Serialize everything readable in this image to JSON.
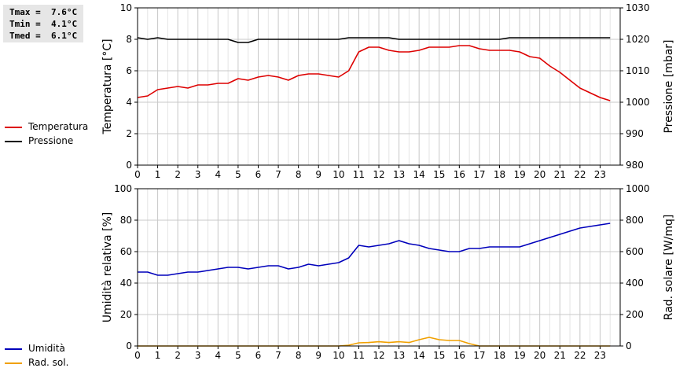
{
  "stats": {
    "tmax": "Tmax =  7.6°C",
    "tmin": "Tmin =  4.1°C",
    "tmed": "Tmed =  6.1°C"
  },
  "legend_top": [
    {
      "label": "Temperatura",
      "color": "#dd0000"
    },
    {
      "label": "Pressione",
      "color": "#000000"
    }
  ],
  "legend_bottom": [
    {
      "label": "Umidità",
      "color": "#0000bb"
    },
    {
      "label": "Rad. sol.",
      "color": "#f0a000"
    }
  ],
  "chart_data": [
    {
      "type": "line",
      "xlim": [
        0,
        24
      ],
      "xticks": [
        0,
        1,
        2,
        3,
        4,
        5,
        6,
        7,
        8,
        9,
        10,
        11,
        12,
        13,
        14,
        15,
        16,
        17,
        18,
        19,
        20,
        21,
        22,
        23
      ],
      "grid": true,
      "ylabel": "Temperatura [°C]",
      "ylim": [
        0,
        10
      ],
      "yticks": [
        0,
        2,
        4,
        6,
        8,
        10
      ],
      "y2label": "Pressione [mbar]",
      "y2lim": [
        980,
        1030
      ],
      "y2ticks": [
        980,
        990,
        1000,
        1010,
        1020,
        1030
      ],
      "series": [
        {
          "name": "Temperatura",
          "color": "#dd0000",
          "axis": "left",
          "x": [
            0,
            0.5,
            1,
            1.5,
            2,
            2.5,
            3,
            3.5,
            4,
            4.5,
            5,
            5.5,
            6,
            6.5,
            7,
            7.5,
            8,
            8.5,
            9,
            9.5,
            10,
            10.5,
            11,
            11.5,
            12,
            12.5,
            13,
            13.5,
            14,
            14.5,
            15,
            15.5,
            16,
            16.5,
            17,
            17.5,
            18,
            18.5,
            19,
            19.5,
            20,
            20.5,
            21,
            21.5,
            22,
            22.5,
            23,
            23.5
          ],
          "y": [
            4.3,
            4.4,
            4.8,
            4.9,
            5.0,
            4.9,
            5.1,
            5.1,
            5.2,
            5.2,
            5.5,
            5.4,
            5.6,
            5.7,
            5.6,
            5.4,
            5.7,
            5.8,
            5.8,
            5.7,
            5.6,
            6.0,
            7.2,
            7.5,
            7.5,
            7.3,
            7.2,
            7.2,
            7.3,
            7.5,
            7.5,
            7.5,
            7.6,
            7.6,
            7.4,
            7.3,
            7.3,
            7.3,
            7.2,
            6.9,
            6.8,
            6.3,
            5.9,
            5.4,
            4.9,
            4.6,
            4.3,
            4.1
          ]
        },
        {
          "name": "Pressione",
          "color": "#000000",
          "axis": "right",
          "x": [
            0,
            0.5,
            1,
            1.5,
            2,
            2.5,
            3,
            3.5,
            4,
            4.5,
            5,
            5.5,
            6,
            6.5,
            7,
            7.5,
            8,
            8.5,
            9,
            9.5,
            10,
            10.5,
            11,
            11.5,
            12,
            12.5,
            13,
            13.5,
            14,
            14.5,
            15,
            15.5,
            16,
            16.5,
            17,
            17.5,
            18,
            18.5,
            19,
            19.5,
            20,
            20.5,
            21,
            21.5,
            22,
            22.5,
            23,
            23.5
          ],
          "y": [
            1020.5,
            1020,
            1020.5,
            1020,
            1020,
            1020,
            1020,
            1020,
            1020,
            1020,
            1019,
            1019,
            1020,
            1020,
            1020,
            1020,
            1020,
            1020,
            1020,
            1020,
            1020,
            1020.5,
            1020.5,
            1020.5,
            1020.5,
            1020.5,
            1020,
            1020,
            1020,
            1020,
            1020,
            1020,
            1020,
            1020,
            1020,
            1020,
            1020,
            1020.5,
            1020.5,
            1020.5,
            1020.5,
            1020.5,
            1020.5,
            1020.5,
            1020.5,
            1020.5,
            1020.5,
            1020.5
          ]
        }
      ]
    },
    {
      "type": "line",
      "xlim": [
        0,
        24
      ],
      "xticks": [
        0,
        1,
        2,
        3,
        4,
        5,
        6,
        7,
        8,
        9,
        10,
        11,
        12,
        13,
        14,
        15,
        16,
        17,
        18,
        19,
        20,
        21,
        22,
        23
      ],
      "grid": true,
      "ylabel": "Umidità relativa [%]",
      "ylim": [
        0,
        100
      ],
      "yticks": [
        0,
        20,
        40,
        60,
        80,
        100
      ],
      "y2label": "Rad. solare [W/mq]",
      "y2lim": [
        0,
        1000
      ],
      "y2ticks": [
        0,
        200,
        400,
        600,
        800,
        1000
      ],
      "series": [
        {
          "name": "Umidità",
          "color": "#0000bb",
          "axis": "left",
          "x": [
            0,
            0.5,
            1,
            1.5,
            2,
            2.5,
            3,
            3.5,
            4,
            4.5,
            5,
            5.5,
            6,
            6.5,
            7,
            7.5,
            8,
            8.5,
            9,
            9.5,
            10,
            10.5,
            11,
            11.5,
            12,
            12.5,
            13,
            13.5,
            14,
            14.5,
            15,
            15.5,
            16,
            16.5,
            17,
            17.5,
            18,
            18.5,
            19,
            19.5,
            20,
            20.5,
            21,
            21.5,
            22,
            22.5,
            23,
            23.5
          ],
          "y": [
            47,
            47,
            45,
            45,
            46,
            47,
            47,
            48,
            49,
            50,
            50,
            49,
            50,
            51,
            51,
            49,
            50,
            52,
            51,
            52,
            53,
            56,
            64,
            63,
            64,
            65,
            67,
            65,
            64,
            62,
            61,
            60,
            60,
            62,
            62,
            63,
            63,
            63,
            63,
            65,
            67,
            69,
            71,
            73,
            75,
            76,
            77,
            78
          ]
        },
        {
          "name": "Rad. sol.",
          "color": "#f0a000",
          "axis": "right",
          "x": [
            0,
            1,
            2,
            3,
            4,
            5,
            6,
            7,
            8,
            9,
            10,
            10.5,
            11,
            11.5,
            12,
            12.5,
            13,
            13.5,
            14,
            14.5,
            15,
            15.5,
            16,
            16.5,
            17,
            18,
            19,
            20,
            21,
            22,
            23,
            23.5
          ],
          "y": [
            0,
            0,
            0,
            0,
            0,
            0,
            0,
            0,
            0,
            0,
            0,
            5,
            20,
            22,
            27,
            22,
            27,
            22,
            40,
            55,
            40,
            35,
            35,
            15,
            0,
            0,
            0,
            0,
            0,
            0,
            0,
            0
          ]
        }
      ]
    }
  ]
}
